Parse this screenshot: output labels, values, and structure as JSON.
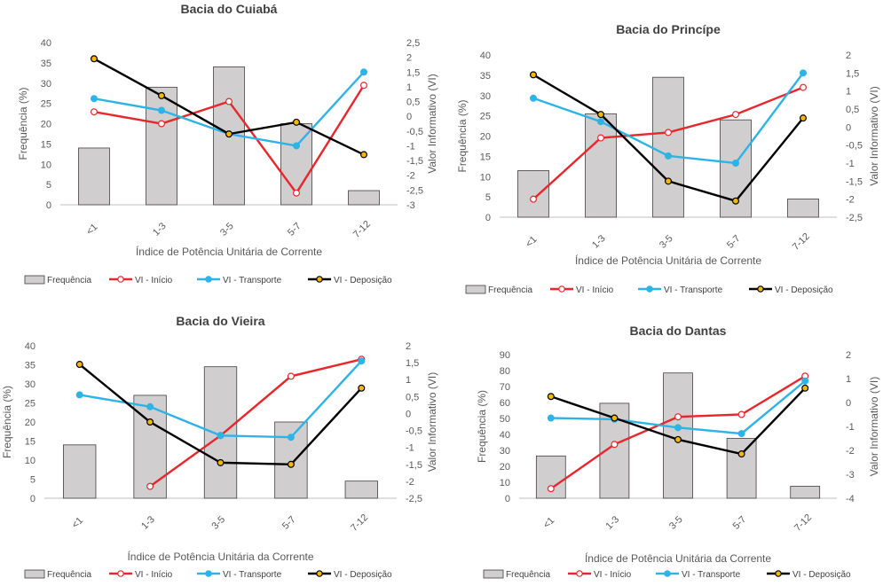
{
  "chart_data": [
    {
      "type": "bar",
      "title": "Bacia do Cuiabá",
      "xlabel": "Índice de Potência Unitária de Corrente",
      "ylabel": "Frequência (%)",
      "y2label": "Valor Informativo (VI)",
      "categories": [
        "<1",
        "1-3",
        "3-5",
        "5-7",
        "7-12"
      ],
      "ylim": [
        0,
        40
      ],
      "yticks": [
        0,
        5,
        10,
        15,
        20,
        25,
        30,
        35,
        40
      ],
      "y2lim": [
        -3,
        2.5
      ],
      "y2ticks": [
        -3,
        -2.5,
        -2,
        -1.5,
        -1,
        -0.5,
        0,
        0.5,
        1,
        1.5,
        2,
        2.5
      ],
      "y2tick_labels": [
        "-3",
        "-2,5",
        "-2",
        "-1,5",
        "-1",
        "-0,5",
        "0",
        "0,5",
        "1",
        "1,5",
        "2",
        "2,5"
      ],
      "series": [
        {
          "name": "Frequência",
          "kind": "bar",
          "color": "#d0cece",
          "values": [
            14,
            29,
            34,
            20,
            3.5
          ]
        },
        {
          "name": "VI - Início",
          "kind": "line",
          "axis": "right",
          "color": "#e8262b",
          "marker": "#ffffff",
          "values": [
            0.15,
            -0.25,
            0.5,
            -2.6,
            1.05
          ]
        },
        {
          "name": "VI - Transporte",
          "kind": "line",
          "axis": "right",
          "color": "#2eb3e6",
          "marker": "#2eb3e6",
          "values": [
            0.6,
            0.2,
            -0.6,
            -1.0,
            1.5
          ]
        },
        {
          "name": "VI - Deposição",
          "kind": "line",
          "axis": "right",
          "color": "#000000",
          "marker": "#f5b800",
          "values": [
            1.95,
            0.7,
            -0.6,
            -0.2,
            -1.3
          ]
        }
      ],
      "legend": "bottom"
    },
    {
      "type": "bar",
      "title": "Bacia do Princípe",
      "xlabel": "Índice de Potência Unitária de Corrente",
      "ylabel": "Frequência (%)",
      "y2label": "Valor Informativo (VI)",
      "categories": [
        "<1",
        "1-3",
        "3-5",
        "5-7",
        "7-12"
      ],
      "ylim": [
        0,
        40
      ],
      "yticks": [
        0,
        5,
        10,
        15,
        20,
        25,
        30,
        35,
        40
      ],
      "y2lim": [
        -2.5,
        2
      ],
      "y2ticks": [
        -2.5,
        -2,
        -1.5,
        -1,
        -0.5,
        0,
        0.5,
        1,
        1.5,
        2
      ],
      "y2tick_labels": [
        "-2,5",
        "-2",
        "-1,5",
        "-1",
        "-0,5",
        "0",
        "0,5",
        "1",
        "1,5",
        "2"
      ],
      "series": [
        {
          "name": "Frequência",
          "kind": "bar",
          "color": "#d0cece",
          "values": [
            11.5,
            25.5,
            34.5,
            24,
            4.5
          ]
        },
        {
          "name": "VI - Início",
          "kind": "line",
          "axis": "right",
          "color": "#e8262b",
          "marker": "#ffffff",
          "values": [
            -2.0,
            -0.3,
            -0.15,
            0.35,
            1.1
          ]
        },
        {
          "name": "VI - Transporte",
          "kind": "line",
          "axis": "right",
          "color": "#2eb3e6",
          "marker": "#2eb3e6",
          "values": [
            0.8,
            0.15,
            -0.8,
            -1.0,
            1.5
          ]
        },
        {
          "name": "VI - Deposição",
          "kind": "line",
          "axis": "right",
          "color": "#000000",
          "marker": "#f5b800",
          "values": [
            1.45,
            0.35,
            -1.5,
            -2.05,
            0.25
          ]
        }
      ],
      "legend": "bottom"
    },
    {
      "type": "bar",
      "title": "Bacia do Vieira",
      "xlabel": "Índice de Potência Unitária da Corrente",
      "ylabel": "Frequência (%)",
      "y2label": "Valor Informativo (VI)",
      "categories": [
        "<1",
        "1-3",
        "3-5",
        "5-7",
        "7-12"
      ],
      "ylim": [
        0,
        40
      ],
      "yticks": [
        0,
        5,
        10,
        15,
        20,
        25,
        30,
        35,
        40
      ],
      "y2lim": [
        -2.5,
        2
      ],
      "y2ticks": [
        -2.5,
        -2,
        -1.5,
        -1,
        -0.5,
        0,
        0.5,
        1,
        1.5,
        2
      ],
      "y2tick_labels": [
        "-2,5",
        "-2",
        "-1,5",
        "-1",
        "-0,5",
        "0",
        "0,5",
        "1",
        "1,5",
        "2"
      ],
      "series": [
        {
          "name": "Frequência",
          "kind": "bar",
          "color": "#d0cece",
          "values": [
            14,
            27,
            34.5,
            20,
            4.5
          ]
        },
        {
          "name": "VI - Início",
          "kind": "line",
          "axis": "right",
          "color": "#e8262b",
          "marker": "#ffffff",
          "values": [
            null,
            -2.15,
            -0.65,
            1.1,
            1.6
          ]
        },
        {
          "name": "VI - Transporte",
          "kind": "line",
          "axis": "right",
          "color": "#2eb3e6",
          "marker": "#2eb3e6",
          "values": [
            0.55,
            0.2,
            -0.65,
            -0.7,
            1.55
          ]
        },
        {
          "name": "VI - Deposição",
          "kind": "line",
          "axis": "right",
          "color": "#000000",
          "marker": "#f5b800",
          "values": [
            1.45,
            -0.25,
            -1.45,
            -1.5,
            0.75
          ]
        }
      ],
      "legend": "bottom"
    },
    {
      "type": "bar",
      "title": "Bacia do Dantas",
      "xlabel": "Índice de Potência Unitária da Corrente",
      "ylabel": "Frequência (%)",
      "y2label": "Valor Informativo (VI)",
      "categories": [
        "<1",
        "1-3",
        "3-5",
        "5-7",
        "7-12"
      ],
      "ylim": [
        0,
        90
      ],
      "yticks": [
        0,
        10,
        20,
        30,
        40,
        50,
        60,
        70,
        80,
        90
      ],
      "y2lim": [
        -4,
        2
      ],
      "y2ticks": [
        -4,
        -3,
        -2,
        -1,
        0,
        1,
        2
      ],
      "y2tick_labels": [
        "-4",
        "-3",
        "-2",
        "-1",
        "0",
        "1",
        "2"
      ],
      "series": [
        {
          "name": "Frequência",
          "kind": "bar",
          "color": "#d0cece",
          "values": [
            26.5,
            59.5,
            78.5,
            37.5,
            7.5
          ]
        },
        {
          "name": "VI - Início",
          "kind": "line",
          "axis": "right",
          "color": "#e8262b",
          "marker": "#ffffff",
          "values": [
            -3.6,
            -1.75,
            -0.6,
            -0.5,
            1.1
          ]
        },
        {
          "name": "VI - Transporte",
          "kind": "line",
          "axis": "right",
          "color": "#2eb3e6",
          "marker": "#2eb3e6",
          "values": [
            -0.65,
            -0.7,
            -1.05,
            -1.3,
            0.9
          ]
        },
        {
          "name": "VI - Deposição",
          "kind": "line",
          "axis": "right",
          "color": "#000000",
          "marker": "#f5b800",
          "values": [
            0.25,
            -0.65,
            -1.55,
            -2.15,
            0.6
          ]
        }
      ],
      "legend": "bottom"
    }
  ]
}
